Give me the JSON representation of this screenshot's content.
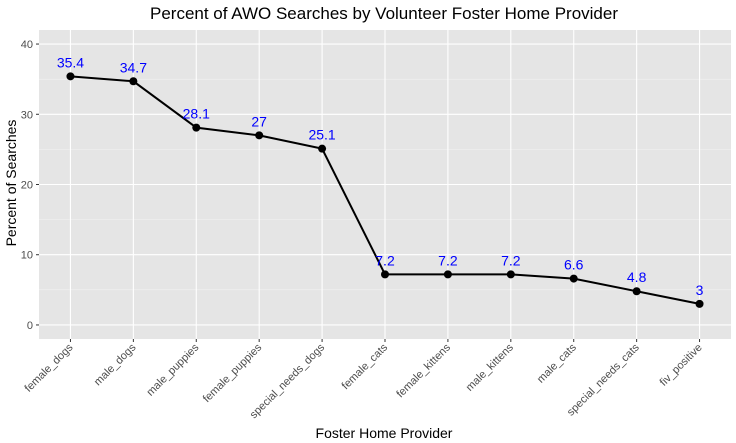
{
  "chart_data": {
    "type": "line",
    "title": "Percent of AWO Searches by Volunteer Foster Home Provider",
    "xlabel": "Foster Home Provider",
    "ylabel": "Percent of Searches",
    "categories": [
      "female_dogs",
      "male_dogs",
      "male_puppies",
      "female_puppies",
      "special_needs_dogs",
      "female_cats",
      "female_kittens",
      "male_kittens",
      "male_cats",
      "special_needs_cats",
      "fiv_positive"
    ],
    "values": [
      35.4,
      34.7,
      28.1,
      27,
      25.1,
      7.2,
      7.2,
      7.2,
      6.6,
      4.8,
      3
    ],
    "data_labels": [
      "35.4",
      "34.7",
      "28.1",
      "27",
      "25.1",
      "7.2",
      "7.2",
      "7.2",
      "6.6",
      "4.8",
      "3"
    ],
    "yticks": [
      0,
      10,
      20,
      30,
      40
    ],
    "ylim": [
      -2,
      42
    ],
    "grid": true,
    "colors": {
      "panel": "#e5e5e5",
      "grid_major": "#ffffff",
      "line": "#000000",
      "label": "#0000ff"
    }
  }
}
